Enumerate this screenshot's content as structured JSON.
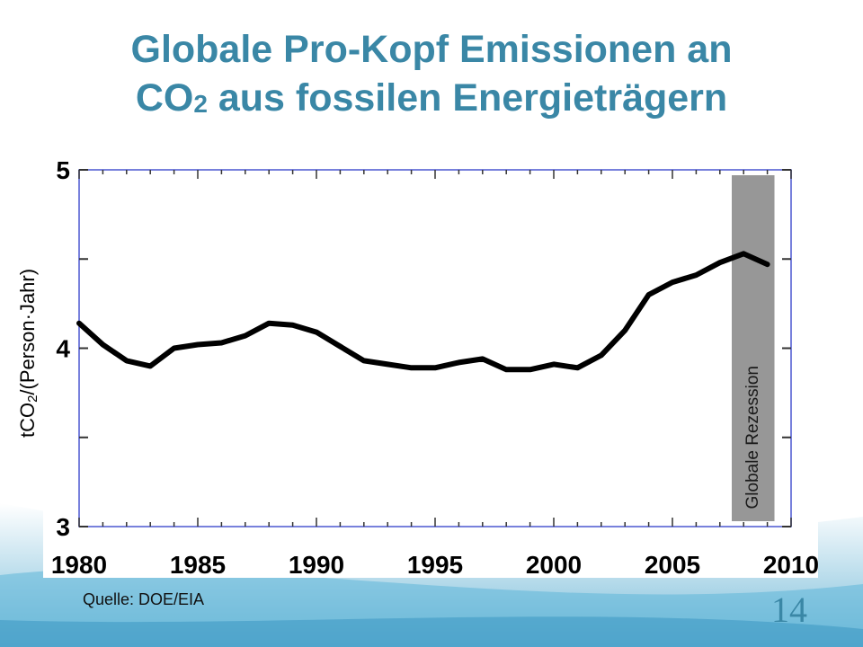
{
  "slide": {
    "title_part1": "Globale Pro-Kopf Emissionen an",
    "title_co": "CO",
    "title_sub": "2",
    "title_part2": " aus fossilen Energieträgern",
    "ylabel_pre": "tCO",
    "ylabel_sub": "2",
    "ylabel_post": "/(Person·Jahr)",
    "source": "Quelle: DOE/EIA",
    "page_number": "14",
    "accent_color": "#3a87a6"
  },
  "chart_data": {
    "type": "line",
    "title": "Globale Pro-Kopf Emissionen an CO2 aus fossilen Energieträgern",
    "xlabel": "",
    "ylabel": "tCO2/(Person·Jahr)",
    "xlim": [
      1980,
      2010
    ],
    "ylim": [
      3,
      5
    ],
    "x_ticks": [
      1980,
      1985,
      1990,
      1995,
      2000,
      2005,
      2010
    ],
    "x_tick_labels": [
      "1980",
      "1985",
      "1990",
      "1995",
      "2000",
      "2005",
      "2010"
    ],
    "y_ticks": [
      3,
      4,
      5
    ],
    "y_tick_labels": [
      "3",
      "4",
      "5"
    ],
    "grid": false,
    "series": [
      {
        "x": [
          1980,
          1981,
          1982,
          1983,
          1984,
          1985,
          1986,
          1987,
          1988,
          1989,
          1990,
          1991,
          1992,
          1993,
          1994,
          1995,
          1996,
          1997,
          1998,
          1999,
          2000,
          2001,
          2002,
          2003,
          2004,
          2005,
          2006,
          2007,
          2008,
          2009
        ],
        "values": [
          4.14,
          4.02,
          3.93,
          3.9,
          4.0,
          4.02,
          4.03,
          4.07,
          4.14,
          4.13,
          4.09,
          4.01,
          3.93,
          3.91,
          3.89,
          3.89,
          3.92,
          3.94,
          3.88,
          3.88,
          3.91,
          3.89,
          3.96,
          4.1,
          4.3,
          4.37,
          4.41,
          4.48,
          4.53,
          4.47
        ],
        "color": "#000000"
      }
    ],
    "annotations": [
      {
        "type": "band",
        "x_start": 2007.5,
        "x_end": 2009.3,
        "label": "Globale Rezession",
        "color": "#8c8c8c"
      }
    ]
  }
}
